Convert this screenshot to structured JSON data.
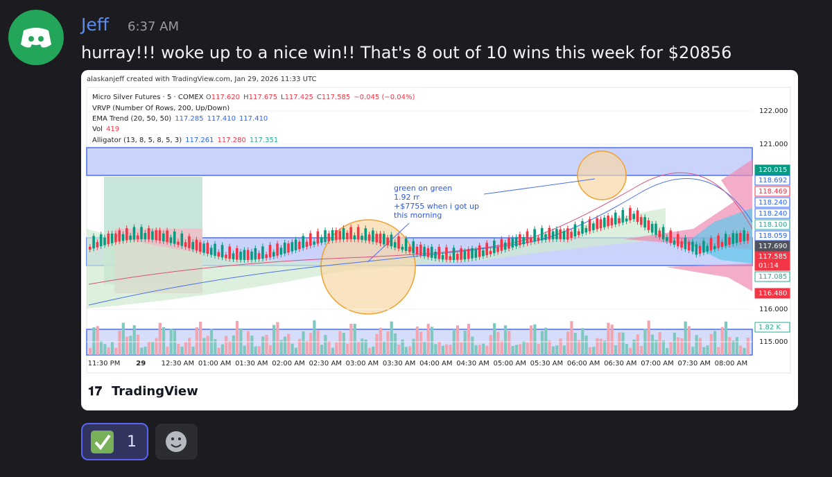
{
  "message": {
    "author": "Jeff",
    "time": "6:37 AM",
    "text": "hurray!!! woke up to a nice win!! That's 8 out of 10 wins this week  for $20856"
  },
  "embed": {
    "credit": "alaskanjeff created with TradingView.com, Jan 29, 2026 11:33 UTC",
    "legend": {
      "symbol": "Micro Silver Futures · 5 · COMEX",
      "ohlc": [
        [
          "O",
          "117.620"
        ],
        [
          "H",
          "117.675"
        ],
        [
          "L",
          "117.425"
        ],
        [
          "C",
          "117.585"
        ]
      ],
      "change": "−0.045 (−0.04%)",
      "vrvp": "VRVP (Number Of Rows, 200, Up/Down)",
      "ema": "EMA Trend (20, 50, 50)",
      "ema_values": [
        "117.285",
        "117.410",
        "117.410"
      ],
      "vol": "Vol",
      "vol_value": "419",
      "alligator": "Alligator (13, 8, 5, 8, 5, 3)",
      "alligator_values": [
        "117.261",
        "117.280",
        "117.351"
      ]
    },
    "annotation": [
      "green on green",
      "1.92 rr",
      "+$7755 when i got up",
      "this morning"
    ],
    "price_axis": [
      "122.000",
      "121.000",
      "116.000",
      "115.000"
    ],
    "price_labels": [
      "120.015",
      "118.692",
      "118.469",
      "118.240",
      "118.240",
      "118.100",
      "118.059",
      "117.690",
      "117.585",
      "01:14",
      "117.085",
      "116.480",
      "1.82 K"
    ],
    "time_axis": [
      "11:30 PM",
      "29",
      "12:30 AM",
      "01:00 AM",
      "01:30 AM",
      "02:00 AM",
      "02:30 AM",
      "03:00 AM",
      "03:30 AM",
      "04:00 AM",
      "04:30 AM",
      "05:00 AM",
      "05:30 AM",
      "06:00 AM",
      "06:30 AM",
      "07:00 AM",
      "07:30 AM",
      "08:00 AM"
    ],
    "brand": "TradingView"
  },
  "reactions": [
    {
      "count": "1"
    }
  ]
}
